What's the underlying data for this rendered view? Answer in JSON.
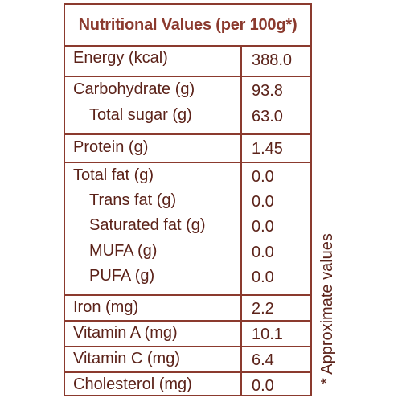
{
  "table": {
    "title": "Nutritional Values (per 100g*)",
    "rows": [
      {
        "label": "Energy (kcal)",
        "value": "388.0"
      },
      {
        "label": "Carbohydrate (g)",
        "value": "93.8"
      },
      {
        "label": "Total sugar (g)",
        "value": "63.0"
      },
      {
        "label": "Protein (g)",
        "value": "1.45"
      },
      {
        "label": "Total fat (g)",
        "value": "0.0"
      },
      {
        "label": "Trans fat (g)",
        "value": "0.0"
      },
      {
        "label": "Saturated fat (g)",
        "value": "0.0"
      },
      {
        "label": "MUFA (g)",
        "value": "0.0"
      },
      {
        "label": "PUFA (g)",
        "value": "0.0"
      },
      {
        "label": "Iron (mg)",
        "value": "2.2"
      },
      {
        "label": "Vitamin A (mg)",
        "value": "10.1"
      },
      {
        "label": "Vitamin C (mg)",
        "value": "6.4"
      },
      {
        "label": "Cholesterol (mg)",
        "value": "0.0"
      }
    ]
  },
  "footnote": "* Approximate values",
  "colors": {
    "border": "#8b3a2e",
    "text": "#5b2219"
  }
}
